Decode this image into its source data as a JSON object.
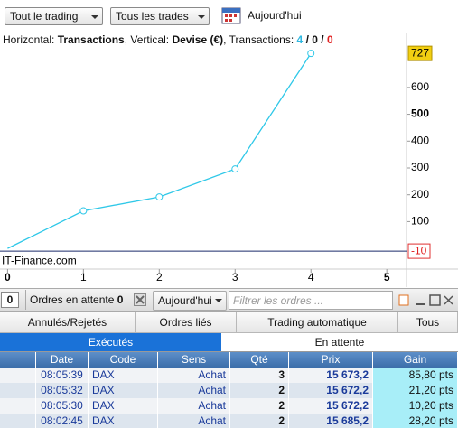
{
  "toolbar": {
    "scope": "Tout le trading",
    "trades": "Tous les trades",
    "date": "Aujourd'hui"
  },
  "chart_data": {
    "type": "line",
    "header": {
      "horizontal_label": "Horizontal:",
      "horizontal": "Transactions",
      "vertical_label": ", Vertical:",
      "vertical": "Devise (€)",
      "count_label": ", Transactions:",
      "counts": [
        4,
        0,
        0
      ],
      "separator": "/"
    },
    "watermark": "IT-Finance.com",
    "x": [
      0,
      1,
      2,
      3,
      4
    ],
    "series": [
      {
        "name": "Gain",
        "color": "#2fc8e8",
        "values": [
          0,
          140,
          192,
          296,
          727
        ]
      }
    ],
    "xlim": [
      -0.1,
      5.26
    ],
    "xticks": [
      0,
      1,
      2,
      3,
      4,
      5
    ],
    "emphasized_xticks": [
      0,
      5
    ],
    "ylim": [
      -77,
      751
    ],
    "yticks": [
      100,
      200,
      300,
      400,
      500,
      600
    ],
    "emphasized_ytick": 500,
    "max_marker": 727,
    "min_marker": -10,
    "reference_line_color": "#1a2a6a"
  },
  "orders_bar": {
    "count_box": 0,
    "pending_label": "Ordres en attente",
    "pending_count": 0,
    "date": "Aujourd'hui",
    "filter_placeholder": "Filtrer les ordres ..."
  },
  "table": {
    "tabs": [
      "Annulés/Rejetés",
      "Ordres liés",
      "Trading automatique",
      "Tous"
    ],
    "subtabs": [
      "Exécutés",
      "En attente"
    ],
    "columns": [
      "Date",
      "Code",
      "Sens",
      "Qté",
      "Prix",
      "Gain"
    ],
    "rows": [
      [
        "08:05:39",
        "DAX",
        "Achat",
        3,
        "15 673,2",
        "85,80 pts"
      ],
      [
        "08:05:32",
        "DAX",
        "Achat",
        2,
        "15 672,2",
        "21,20 pts"
      ],
      [
        "08:05:30",
        "DAX",
        "Achat",
        2,
        "15 672,2",
        "10,20 pts"
      ],
      [
        "08:02:45",
        "DAX",
        "Achat",
        2,
        "15 685,2",
        "28,20 pts"
      ]
    ]
  }
}
